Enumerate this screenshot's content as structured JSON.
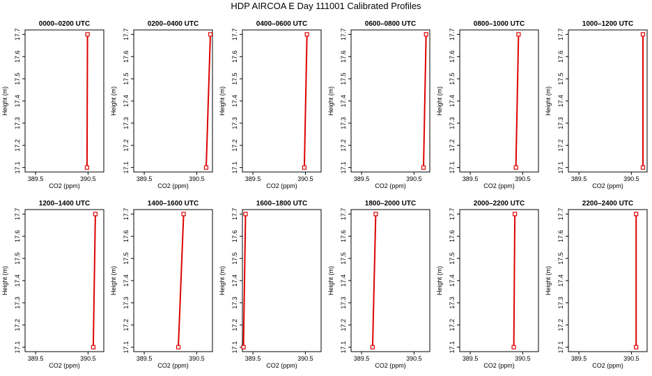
{
  "figure": {
    "title": "HDP AIRCOA E  Day 111001  Calibrated Profiles"
  },
  "style": {
    "line_color": "#dd0000",
    "marker_color": "#dd0000",
    "axis_color": "#000000"
  },
  "chart_data": [
    {
      "type": "line",
      "title": "0000–0200 UTC",
      "xlabel": "CO2 (ppm)",
      "ylabel": "Height (m)",
      "xlim": [
        389.3,
        390.8
      ],
      "ylim": [
        17.08,
        17.72
      ],
      "xticks": [
        389.5,
        390.5
      ],
      "yticks": [
        17.1,
        17.2,
        17.3,
        17.4,
        17.5,
        17.6,
        17.7
      ],
      "series": [
        {
          "x": [
            390.48,
            390.49
          ],
          "y": [
            17.1,
            17.7
          ]
        }
      ]
    },
    {
      "type": "line",
      "title": "0200–0400 UTC",
      "xlabel": "CO2 (ppm)",
      "ylabel": "Height (m)",
      "xlim": [
        389.3,
        390.8
      ],
      "ylim": [
        17.08,
        17.72
      ],
      "xticks": [
        389.5,
        390.5
      ],
      "yticks": [
        17.1,
        17.2,
        17.3,
        17.4,
        17.5,
        17.6,
        17.7
      ],
      "series": [
        {
          "x": [
            390.68,
            390.76
          ],
          "y": [
            17.1,
            17.7
          ]
        }
      ]
    },
    {
      "type": "line",
      "title": "0400–0600 UTC",
      "xlabel": "CO2 (ppm)",
      "ylabel": "Height (m)",
      "xlim": [
        389.3,
        390.8
      ],
      "ylim": [
        17.08,
        17.72
      ],
      "xticks": [
        389.5,
        390.5
      ],
      "yticks": [
        17.1,
        17.2,
        17.3,
        17.4,
        17.5,
        17.6,
        17.7
      ],
      "series": [
        {
          "x": [
            390.48,
            390.53
          ],
          "y": [
            17.1,
            17.7
          ]
        }
      ]
    },
    {
      "type": "line",
      "title": "0600–0800 UTC",
      "xlabel": "CO2 (ppm)",
      "ylabel": "Height (m)",
      "xlim": [
        389.3,
        390.8
      ],
      "ylim": [
        17.08,
        17.72
      ],
      "xticks": [
        389.5,
        390.5
      ],
      "yticks": [
        17.1,
        17.2,
        17.3,
        17.4,
        17.5,
        17.6,
        17.7
      ],
      "series": [
        {
          "x": [
            390.68,
            390.73
          ],
          "y": [
            17.1,
            17.7
          ]
        }
      ]
    },
    {
      "type": "line",
      "title": "0800–1000 UTC",
      "xlabel": "CO2 (ppm)",
      "ylabel": "Height (m)",
      "xlim": [
        389.3,
        390.8
      ],
      "ylim": [
        17.08,
        17.72
      ],
      "xticks": [
        389.5,
        390.5
      ],
      "yticks": [
        17.1,
        17.2,
        17.3,
        17.4,
        17.5,
        17.6,
        17.7
      ],
      "series": [
        {
          "x": [
            390.37,
            390.42
          ],
          "y": [
            17.1,
            17.7
          ]
        }
      ]
    },
    {
      "type": "line",
      "title": "1000–1200 UTC",
      "xlabel": "CO2 (ppm)",
      "ylabel": "Height (m)",
      "xlim": [
        389.3,
        390.8
      ],
      "ylim": [
        17.08,
        17.72
      ],
      "xticks": [
        389.5,
        390.5
      ],
      "yticks": [
        17.1,
        17.2,
        17.3,
        17.4,
        17.5,
        17.6,
        17.7
      ],
      "series": [
        {
          "x": [
            390.72,
            390.72
          ],
          "y": [
            17.1,
            17.7
          ]
        }
      ]
    },
    {
      "type": "line",
      "title": "1200–1400 UTC",
      "xlabel": "CO2 (ppm)",
      "ylabel": "Height (m)",
      "xlim": [
        389.3,
        390.8
      ],
      "ylim": [
        17.08,
        17.72
      ],
      "xticks": [
        389.5,
        390.5
      ],
      "yticks": [
        17.1,
        17.2,
        17.3,
        17.4,
        17.5,
        17.6,
        17.7
      ],
      "series": [
        {
          "x": [
            390.6,
            390.64
          ],
          "y": [
            17.1,
            17.7
          ]
        }
      ]
    },
    {
      "type": "line",
      "title": "1400–1600 UTC",
      "xlabel": "CO2 (ppm)",
      "ylabel": "Height (m)",
      "xlim": [
        389.3,
        390.8
      ],
      "ylim": [
        17.08,
        17.72
      ],
      "xticks": [
        389.5,
        390.5
      ],
      "yticks": [
        17.1,
        17.2,
        17.3,
        17.4,
        17.5,
        17.6,
        17.7
      ],
      "series": [
        {
          "x": [
            390.15,
            390.25
          ],
          "y": [
            17.1,
            17.7
          ]
        }
      ]
    },
    {
      "type": "line",
      "title": "1600–1800 UTC",
      "xlabel": "CO2 (ppm)",
      "ylabel": "Height (m)",
      "xlim": [
        389.3,
        390.8
      ],
      "ylim": [
        17.08,
        17.72
      ],
      "xticks": [
        389.5,
        390.5
      ],
      "yticks": [
        17.1,
        17.2,
        17.3,
        17.4,
        17.5,
        17.6,
        17.7
      ],
      "series": [
        {
          "x": [
            389.32,
            389.36
          ],
          "y": [
            17.1,
            17.7
          ]
        }
      ]
    },
    {
      "type": "line",
      "title": "1800–2000 UTC",
      "xlabel": "CO2 (ppm)",
      "ylabel": "Height (m)",
      "xlim": [
        389.3,
        390.8
      ],
      "ylim": [
        17.08,
        17.72
      ],
      "xticks": [
        389.5,
        390.5
      ],
      "yticks": [
        17.1,
        17.2,
        17.3,
        17.4,
        17.5,
        17.6,
        17.7
      ],
      "series": [
        {
          "x": [
            389.71,
            389.77
          ],
          "y": [
            17.1,
            17.7
          ]
        }
      ]
    },
    {
      "type": "line",
      "title": "2000–2200 UTC",
      "xlabel": "CO2 (ppm)",
      "ylabel": "Height (m)",
      "xlim": [
        389.3,
        390.8
      ],
      "ylim": [
        17.08,
        17.72
      ],
      "xticks": [
        389.5,
        390.5
      ],
      "yticks": [
        17.1,
        17.2,
        17.3,
        17.4,
        17.5,
        17.6,
        17.7
      ],
      "series": [
        {
          "x": [
            390.33,
            390.35
          ],
          "y": [
            17.1,
            17.7
          ]
        }
      ]
    },
    {
      "type": "line",
      "title": "2200–2400 UTC",
      "xlabel": "CO2 (ppm)",
      "ylabel": "Height (m)",
      "xlim": [
        389.3,
        390.8
      ],
      "ylim": [
        17.08,
        17.72
      ],
      "xticks": [
        389.5,
        390.5
      ],
      "yticks": [
        17.1,
        17.2,
        17.3,
        17.4,
        17.5,
        17.6,
        17.7
      ],
      "series": [
        {
          "x": [
            390.59,
            390.59
          ],
          "y": [
            17.1,
            17.7
          ]
        }
      ]
    }
  ]
}
